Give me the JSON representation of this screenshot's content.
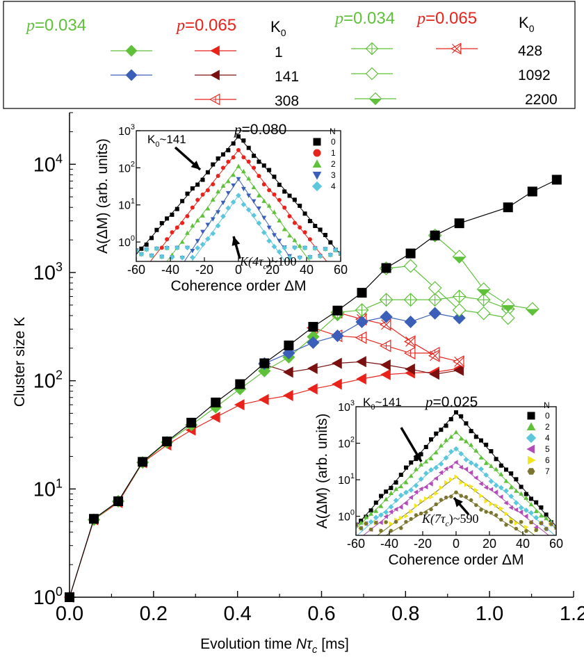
{
  "colors": {
    "black": "#000000",
    "green": "#5fc13a",
    "green_dark": "#2f8f2f",
    "blue": "#3b5fb8",
    "red": "#e8231c",
    "darkred": "#7a1010",
    "cyan": "#5cc6dd",
    "magenta": "#b24ab8",
    "yellow": "#f4e41a",
    "olive": "#7a7630"
  },
  "legend": {
    "p_label": "p",
    "p_green": "=0.034",
    "p_red": "=0.065",
    "k0_label": "K",
    "k0_sub": "0",
    "k0_values": [
      "1",
      "141",
      "308",
      "428",
      "1092",
      "2200"
    ]
  },
  "chart_data": [
    {
      "type": "scatter",
      "log_y": true,
      "xlabel": "Evolution time",
      "xlabel_math": "Nτ",
      "xlabel_sub": "c",
      "xlabel_unit": "[ms]",
      "ylabel": "Cluster size K",
      "xlim": [
        0,
        1.2
      ],
      "ylim": [
        1,
        30000
      ],
      "xticks": [
        "0.0",
        "0.2",
        "0.4",
        "0.6",
        "0.8",
        "1.0",
        "1.2"
      ],
      "yticks": [
        {
          "base": "10",
          "exp": "0"
        },
        {
          "base": "10",
          "exp": "1"
        },
        {
          "base": "10",
          "exp": "2"
        },
        {
          "base": "10",
          "exp": "3"
        },
        {
          "base": "10",
          "exp": "4"
        }
      ],
      "series": [
        {
          "name": "p=0.080 K0=1",
          "color": "black",
          "marker": "square",
          "x": [
            0.0,
            0.058,
            0.116,
            0.174,
            0.232,
            0.29,
            0.348,
            0.406,
            0.464,
            0.522,
            0.58,
            0.638,
            0.696,
            0.754,
            0.812,
            0.87,
            0.928,
            1.044,
            1.102,
            1.16
          ],
          "y": [
            1,
            5.3,
            7.7,
            17.8,
            27.5,
            41,
            63,
            93,
            145,
            212,
            315,
            445,
            650,
            1100,
            1500,
            2200,
            2850,
            4000,
            5600,
            7200
          ]
        },
        {
          "name": "p=0.034 K0=1",
          "color": "green",
          "marker": "diamond",
          "x": [
            0.058,
            0.116,
            0.174,
            0.232,
            0.29,
            0.348,
            0.406,
            0.464,
            0.522,
            0.58,
            0.638
          ],
          "y": [
            5.2,
            7.7,
            17.6,
            27,
            39,
            57,
            84,
            123,
            165,
            255,
            405
          ]
        },
        {
          "name": "p=0.065 K0=1",
          "color": "red",
          "marker": "tri-left",
          "x": [
            0.0,
            0.058,
            0.116,
            0.174,
            0.232,
            0.29,
            0.348,
            0.406,
            0.464,
            0.522,
            0.58,
            0.638,
            0.696,
            0.754,
            0.812,
            0.87,
            0.928
          ],
          "y": [
            1,
            5.2,
            7.5,
            17.5,
            25.5,
            35,
            46,
            60,
            67,
            73,
            84,
            93,
            104,
            114,
            118,
            120,
            130
          ]
        },
        {
          "name": "p=0.034 K0=141",
          "color": "blue",
          "marker": "diamond",
          "x": [
            0.464,
            0.522,
            0.58,
            0.638,
            0.696,
            0.754,
            0.812,
            0.87,
            0.928
          ],
          "y": [
            144,
            180,
            225,
            260,
            350,
            390,
            350,
            420,
            380
          ]
        },
        {
          "name": "p=0.065 K0=141",
          "color": "darkred",
          "marker": "tri-left",
          "x": [
            0.464,
            0.522,
            0.58,
            0.638,
            0.696,
            0.754,
            0.812,
            0.87,
            0.928
          ],
          "y": [
            141,
            120,
            130,
            145,
            150,
            140,
            128,
            115,
            125
          ]
        },
        {
          "name": "p=0.065 K0=308",
          "color": "red",
          "marker": "tri-left-open",
          "x": [
            0.58,
            0.638,
            0.696,
            0.754,
            0.812,
            0.87
          ],
          "y": [
            308,
            260,
            250,
            210,
            180,
            180
          ]
        },
        {
          "name": "p=0.034 K0=428",
          "color": "green",
          "marker": "diamond-cross",
          "x": [
            0.638,
            0.696,
            0.754,
            0.812,
            0.87,
            0.928,
            0.986,
            1.044
          ],
          "y": [
            428,
            450,
            560,
            560,
            560,
            600,
            560,
            460
          ]
        },
        {
          "name": "p=0.065 K0=428",
          "color": "red",
          "marker": "x-tri",
          "x": [
            0.638,
            0.696,
            0.754,
            0.812,
            0.87,
            0.928
          ],
          "y": [
            428,
            370,
            330,
            230,
            170,
            150
          ]
        },
        {
          "name": "p=0.034 K0=1092",
          "color": "green",
          "marker": "diamond-open",
          "x": [
            0.754,
            0.812,
            0.87,
            0.928,
            0.986,
            1.044
          ],
          "y": [
            1092,
            1150,
            720,
            450,
            420,
            380
          ]
        },
        {
          "name": "p=0.034 K0=2200",
          "color": "green",
          "marker": "diamond-half",
          "x": [
            0.87,
            0.928,
            0.986,
            1.044,
            1.102
          ],
          "y": [
            2200,
            1400,
            700,
            500,
            460
          ]
        }
      ]
    },
    {
      "type": "scatter",
      "log_y": true,
      "title": "=0.080",
      "title_p": "p",
      "xlabel": "Coherence order ΔM",
      "ylabel": "A(ΔM) (arb. units)",
      "xlim": [
        -60,
        60
      ],
      "ylim": [
        0.3,
        1000
      ],
      "xticks": [
        "-60",
        "-40",
        "-20",
        "0",
        "20",
        "40",
        "60"
      ],
      "yticks": [
        {
          "base": "10",
          "exp": "0"
        },
        {
          "base": "10",
          "exp": "1"
        },
        {
          "base": "10",
          "exp": "2"
        },
        {
          "base": "10",
          "exp": "3"
        }
      ],
      "legend_title": "N",
      "annotations": {
        "k0": "K",
        "k0_sub": "0",
        "k0_val": "~141",
        "kn": "K(4τ",
        "kn_sub": "c",
        "kn_val": ")~100"
      },
      "series": [
        {
          "name": "0",
          "color": "black",
          "marker": "square",
          "peak": 700,
          "slope": 0.053
        },
        {
          "name": "1",
          "color": "red",
          "marker": "circle",
          "peak": 300,
          "slope": 0.058
        },
        {
          "name": "2",
          "color": "green",
          "marker": "tri-up",
          "peak": 110,
          "slope": 0.061
        },
        {
          "name": "3",
          "color": "blue",
          "marker": "tri-down",
          "peak": 50,
          "slope": 0.07
        },
        {
          "name": "4",
          "color": "cyan",
          "marker": "diamond",
          "peak": 18,
          "slope": 0.065
        }
      ]
    },
    {
      "type": "scatter",
      "log_y": true,
      "title": "=0.025",
      "title_p": "p",
      "xlabel": "Coherence order ΔM",
      "ylabel": "A(ΔM) (arb. units)",
      "xlim": [
        -60,
        60
      ],
      "ylim": [
        0.3,
        1000
      ],
      "xticks": [
        "-60",
        "-40",
        "-20",
        "0",
        "20",
        "40",
        "60"
      ],
      "yticks": [
        {
          "base": "10",
          "exp": "0"
        },
        {
          "base": "10",
          "exp": "1"
        },
        {
          "base": "10",
          "exp": "2"
        },
        {
          "base": "10",
          "exp": "3"
        }
      ],
      "legend_title": "N",
      "annotations": {
        "k0": "K",
        "k0_sub": "0",
        "k0_val": "~141",
        "kn": "K(7τ",
        "kn_sub": "c",
        "kn_val": ")~590"
      },
      "series": [
        {
          "name": "0",
          "color": "black",
          "marker": "square",
          "peak": 700,
          "slope": 0.052
        },
        {
          "name": "2",
          "color": "green",
          "marker": "tri-up",
          "peak": 200,
          "slope": 0.044
        },
        {
          "name": "4",
          "color": "cyan",
          "marker": "diamond",
          "peak": 70,
          "slope": 0.04
        },
        {
          "name": "5",
          "color": "magenta",
          "marker": "tri-left",
          "peak": 30,
          "slope": 0.036
        },
        {
          "name": "6",
          "color": "yellow",
          "marker": "tri-right",
          "peak": 12,
          "slope": 0.034
        },
        {
          "name": "7",
          "color": "olive",
          "marker": "hexagon",
          "peak": 4.5,
          "slope": 0.028
        }
      ]
    }
  ]
}
